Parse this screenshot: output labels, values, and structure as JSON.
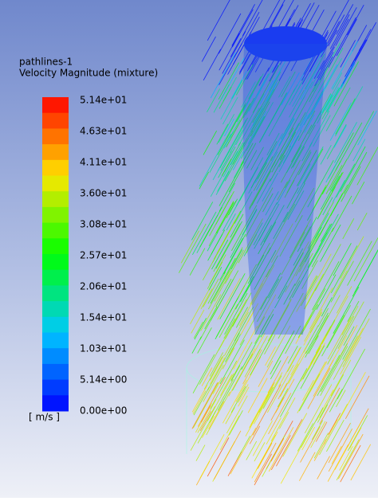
{
  "legend": {
    "title": "pathlines-1",
    "subtitle": "Velocity Magnitude (mixture)",
    "ticks": [
      "5.14e+01",
      "4.63e+01",
      "4.11e+01",
      "3.60e+01",
      "3.08e+01",
      "2.57e+01",
      "2.06e+01",
      "1.54e+01",
      "1.03e+01",
      "5.14e+00",
      "0.00e+00"
    ],
    "unit": "[ m/s ]"
  }
}
